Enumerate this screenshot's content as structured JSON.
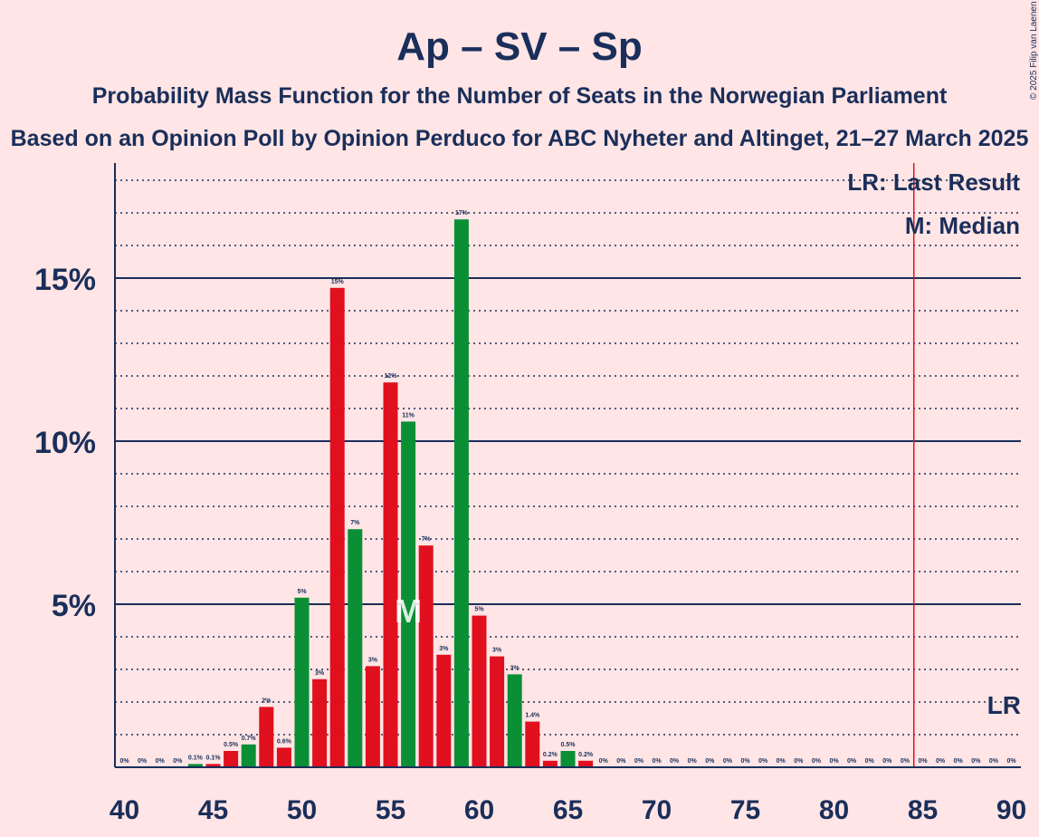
{
  "chart_data": {
    "type": "bar",
    "title": "Ap – SV – Sp",
    "subtitle": "Probability Mass Function for the Number of Seats in the Norwegian Parliament",
    "subtitle2": "Based on an Opinion Poll by Opinion Perduco for ABC Nyheter and Altinget, 21–27 March 2025",
    "copyright": "© 2025 Filip van Laenen",
    "legend": {
      "lr": "LR: Last Result",
      "median": "M: Median"
    },
    "median_label": "M",
    "lr_label": "LR",
    "median_seat": 56,
    "last_result_seat": 85,
    "xlim": [
      40,
      90
    ],
    "ylim": [
      0,
      18.5
    ],
    "x_ticks": [
      40,
      45,
      50,
      55,
      60,
      65,
      70,
      75,
      80,
      85,
      90
    ],
    "x_tick_labels": [
      "40",
      "45",
      "50",
      "55",
      "60",
      "65",
      "70",
      "75",
      "80",
      "85",
      "90"
    ],
    "y_ticks": [
      5,
      10,
      15
    ],
    "y_tick_labels": [
      "5%",
      "10%",
      "15%"
    ],
    "colors": {
      "red": "#e0101e",
      "green": "#0a8f35",
      "axis": "#1a2e5a",
      "lr_line": "#e0101e",
      "background": "#ffe5e5"
    },
    "bars": [
      {
        "seat": 40,
        "value": 0,
        "label": "0%",
        "color": "green"
      },
      {
        "seat": 41,
        "value": 0,
        "label": "0%",
        "color": "red"
      },
      {
        "seat": 42,
        "value": 0,
        "label": "0%",
        "color": "green"
      },
      {
        "seat": 43,
        "value": 0,
        "label": "0%",
        "color": "red"
      },
      {
        "seat": 44,
        "value": 0.1,
        "label": "0.1%",
        "color": "green"
      },
      {
        "seat": 45,
        "value": 0.1,
        "label": "0.1%",
        "color": "red"
      },
      {
        "seat": 46,
        "value": 0.5,
        "label": "0.5%",
        "color": "red"
      },
      {
        "seat": 47,
        "value": 0.7,
        "label": "0.7%",
        "color": "green"
      },
      {
        "seat": 48,
        "value": 1.85,
        "label": "2%",
        "color": "red"
      },
      {
        "seat": 49,
        "value": 0.6,
        "label": "0.6%",
        "color": "red"
      },
      {
        "seat": 50,
        "value": 5.2,
        "label": "5%",
        "color": "green"
      },
      {
        "seat": 51,
        "value": 2.7,
        "label": "3%",
        "color": "red"
      },
      {
        "seat": 52,
        "value": 14.7,
        "label": "15%",
        "color": "red"
      },
      {
        "seat": 53,
        "value": 7.3,
        "label": "7%",
        "color": "green"
      },
      {
        "seat": 54,
        "value": 3.1,
        "label": "3%",
        "color": "red"
      },
      {
        "seat": 55,
        "value": 11.8,
        "label": "12%",
        "color": "red"
      },
      {
        "seat": 56,
        "value": 10.6,
        "label": "11%",
        "color": "green"
      },
      {
        "seat": 57,
        "value": 6.8,
        "label": "7%",
        "color": "red"
      },
      {
        "seat": 58,
        "value": 3.45,
        "label": "3%",
        "color": "red"
      },
      {
        "seat": 59,
        "value": 16.8,
        "label": "17%",
        "color": "green"
      },
      {
        "seat": 60,
        "value": 4.65,
        "label": "5%",
        "color": "red"
      },
      {
        "seat": 61,
        "value": 3.4,
        "label": "3%",
        "color": "red"
      },
      {
        "seat": 62,
        "value": 2.85,
        "label": "3%",
        "color": "green"
      },
      {
        "seat": 63,
        "value": 1.4,
        "label": "1.4%",
        "color": "red"
      },
      {
        "seat": 64,
        "value": 0.2,
        "label": "0.2%",
        "color": "red"
      },
      {
        "seat": 65,
        "value": 0.5,
        "label": "0.5%",
        "color": "green"
      },
      {
        "seat": 66,
        "value": 0.2,
        "label": "0.2%",
        "color": "red"
      },
      {
        "seat": 67,
        "value": 0,
        "label": "0%",
        "color": "red"
      },
      {
        "seat": 68,
        "value": 0,
        "label": "0%",
        "color": "green"
      },
      {
        "seat": 69,
        "value": 0,
        "label": "0%",
        "color": "red"
      },
      {
        "seat": 70,
        "value": 0,
        "label": "0%",
        "color": "red"
      },
      {
        "seat": 71,
        "value": 0,
        "label": "0%",
        "color": "green"
      },
      {
        "seat": 72,
        "value": 0,
        "label": "0%",
        "color": "red"
      },
      {
        "seat": 73,
        "value": 0,
        "label": "0%",
        "color": "red"
      },
      {
        "seat": 74,
        "value": 0,
        "label": "0%",
        "color": "green"
      },
      {
        "seat": 75,
        "value": 0,
        "label": "0%",
        "color": "red"
      },
      {
        "seat": 76,
        "value": 0,
        "label": "0%",
        "color": "red"
      },
      {
        "seat": 77,
        "value": 0,
        "label": "0%",
        "color": "green"
      },
      {
        "seat": 78,
        "value": 0,
        "label": "0%",
        "color": "red"
      },
      {
        "seat": 79,
        "value": 0,
        "label": "0%",
        "color": "red"
      },
      {
        "seat": 80,
        "value": 0,
        "label": "0%",
        "color": "green"
      },
      {
        "seat": 81,
        "value": 0,
        "label": "0%",
        "color": "red"
      },
      {
        "seat": 82,
        "value": 0,
        "label": "0%",
        "color": "red"
      },
      {
        "seat": 83,
        "value": 0,
        "label": "0%",
        "color": "green"
      },
      {
        "seat": 84,
        "value": 0,
        "label": "0%",
        "color": "red"
      },
      {
        "seat": 85,
        "value": 0,
        "label": "0%",
        "color": "red"
      },
      {
        "seat": 86,
        "value": 0,
        "label": "0%",
        "color": "green"
      },
      {
        "seat": 87,
        "value": 0,
        "label": "0%",
        "color": "red"
      },
      {
        "seat": 88,
        "value": 0,
        "label": "0%",
        "color": "red"
      },
      {
        "seat": 89,
        "value": 0,
        "label": "0%",
        "color": "green"
      },
      {
        "seat": 90,
        "value": 0,
        "label": "0%",
        "color": "red"
      }
    ]
  }
}
